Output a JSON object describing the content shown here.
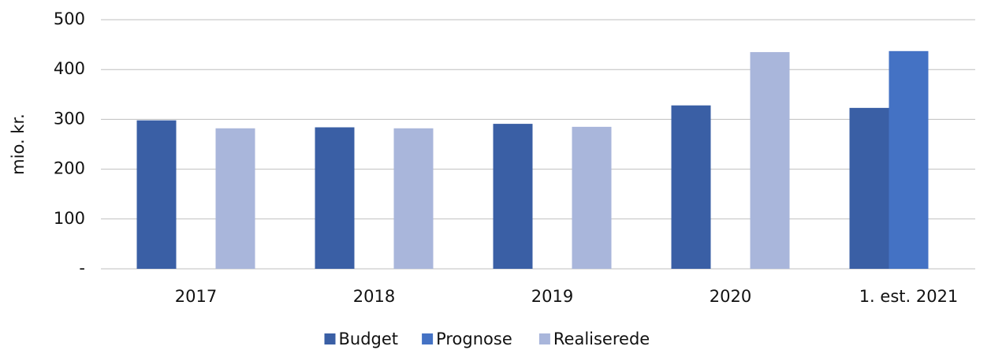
{
  "chart_data": {
    "type": "bar",
    "y_label": "mio. kr.",
    "categories": [
      "2017",
      "2018",
      "2019",
      "2020",
      "1. est. 2021"
    ],
    "series": [
      {
        "name": "Budget",
        "color": "#3a5fa5",
        "values": [
          298,
          284,
          291,
          328,
          323
        ]
      },
      {
        "name": "Prognose",
        "color": "#4472c4",
        "values": [
          null,
          null,
          null,
          null,
          437
        ]
      },
      {
        "name": "Realiserede",
        "color": "#a9b6db",
        "values": [
          282,
          282,
          285,
          435,
          null
        ]
      }
    ],
    "ylim": [
      0,
      500
    ],
    "yticks": [
      {
        "value": 0,
        "label": "-"
      },
      100,
      200,
      300,
      400,
      500
    ],
    "grid": true,
    "legend": "bottom"
  }
}
